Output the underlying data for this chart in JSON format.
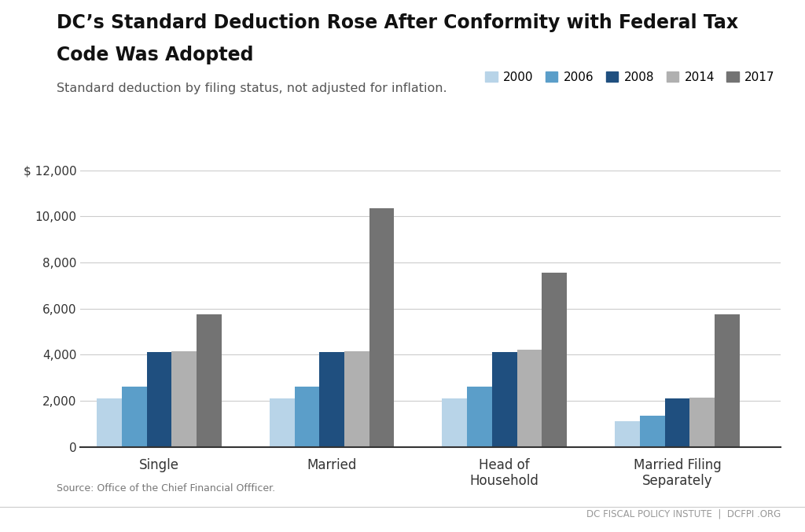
{
  "title_line1": "DC’s Standard Deduction Rose After Conformity with Federal Tax",
  "title_line2": "Code Was Adopted",
  "subtitle": "Standard deduction by filing status, not adjusted for inflation.",
  "source": "Source: Office of the Chief Financial Offficer.",
  "footer": "DC FISCAL POLICY INSTUTE  |  DCFPI .ORG",
  "categories": [
    "Single",
    "Married",
    "Head of\nHousehold",
    "Married Filing\nSeparately"
  ],
  "years": [
    "2000",
    "2006",
    "2008",
    "2014",
    "2017"
  ],
  "colors": [
    "#b8d4e8",
    "#5b9ec9",
    "#1f4f7f",
    "#b0b0b0",
    "#737373"
  ],
  "data": [
    [
      2100,
      2600,
      4100,
      4150,
      5750
    ],
    [
      2100,
      2600,
      4100,
      4150,
      10350
    ],
    [
      2100,
      2600,
      4100,
      4200,
      7550
    ],
    [
      1100,
      1350,
      2100,
      2150,
      5750
    ]
  ],
  "ylim": [
    0,
    12000
  ],
  "yticks": [
    0,
    2000,
    4000,
    6000,
    8000,
    10000,
    12000
  ],
  "background_color": "#ffffff",
  "grid_color": "#cccccc",
  "title_fontsize": 17,
  "subtitle_fontsize": 11.5,
  "axis_label_fontsize": 12,
  "legend_fontsize": 11,
  "tick_fontsize": 11,
  "source_fontsize": 9,
  "footer_fontsize": 8.5
}
